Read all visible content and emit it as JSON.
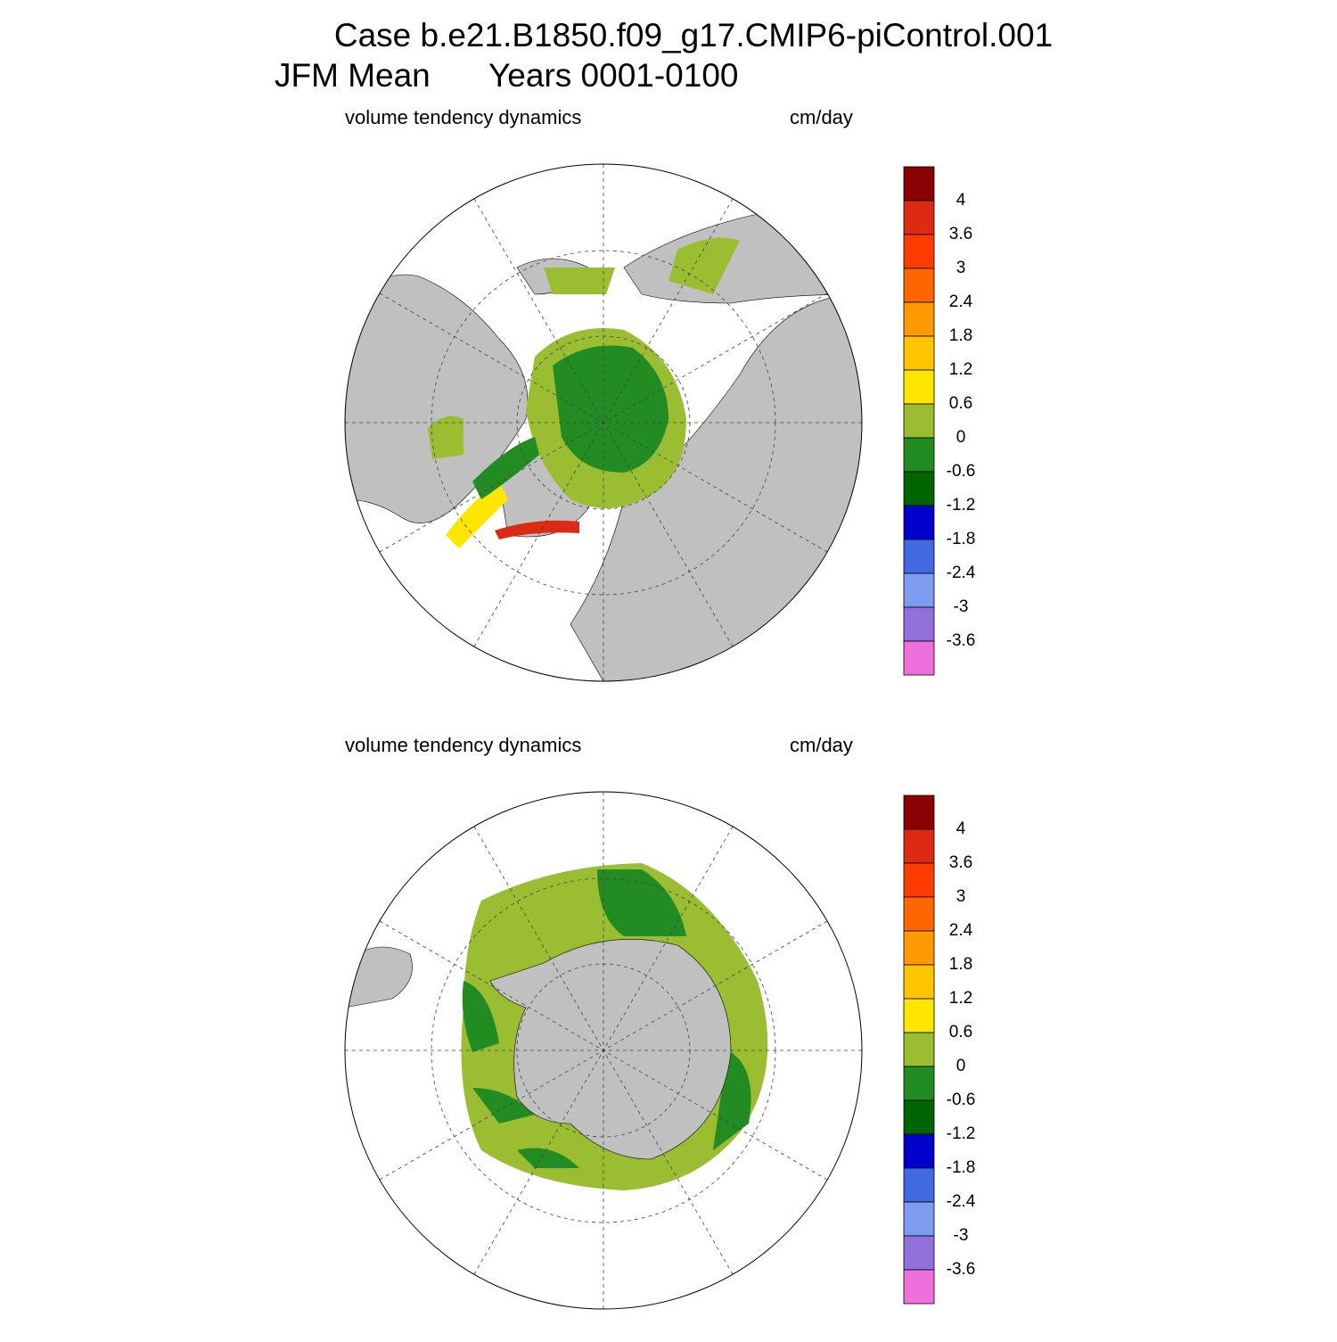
{
  "header": {
    "title": "Case b.e21.B1850.f09_g17.CMIP6-piControl.001",
    "season": "JFM Mean",
    "years": "Years 0001-0100"
  },
  "panels": [
    {
      "left_label": "volume tendency dynamics",
      "right_label": "cm/day",
      "colorbar": {
        "levels": [
          4,
          3.6,
          3,
          2.4,
          1.8,
          1.2,
          0.6,
          0,
          -0.6,
          -1.2,
          -1.8,
          -2.4,
          -3,
          -3.6
        ],
        "colors": [
          "#8B0000",
          "#DD2A12",
          "#FF3C00",
          "#FF6600",
          "#FF9900",
          "#FFC400",
          "#FFE600",
          "#9ABD32",
          "#228B22",
          "#006400",
          "#0000CD",
          "#4169E1",
          "#7B9CF0",
          "#9370DB",
          "#EE70DD"
        ]
      }
    },
    {
      "left_label": "volume tendency dynamics",
      "right_label": "cm/day",
      "colorbar": {
        "levels": [
          4,
          3.6,
          3,
          2.4,
          1.8,
          1.2,
          0.6,
          0,
          -0.6,
          -1.2,
          -1.8,
          -2.4,
          -3,
          -3.6
        ],
        "colors": [
          "#8B0000",
          "#DD2A12",
          "#FF3C00",
          "#FF6600",
          "#FF9900",
          "#FFC400",
          "#FFE600",
          "#9ABD32",
          "#228B22",
          "#006400",
          "#0000CD",
          "#4169E1",
          "#7B9CF0",
          "#9370DB",
          "#EE70DD"
        ]
      }
    }
  ]
}
